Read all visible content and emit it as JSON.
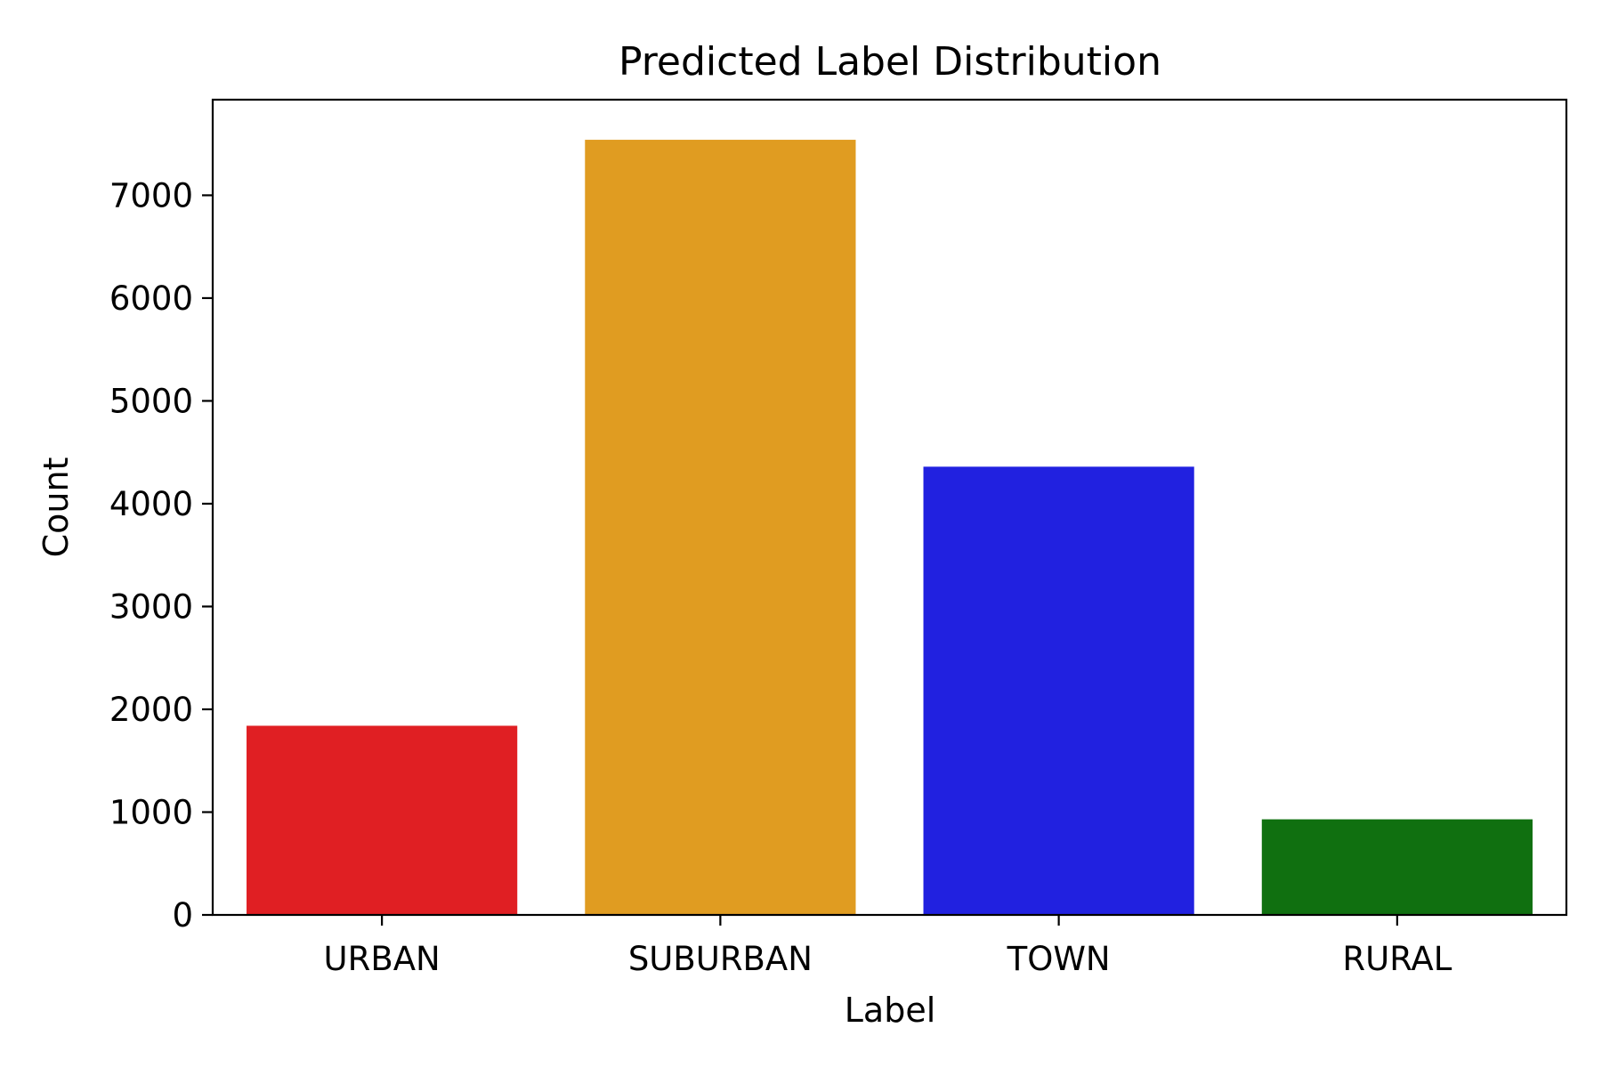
{
  "chart_data": {
    "type": "bar",
    "title": "Predicted Label Distribution",
    "xlabel": "Label",
    "ylabel": "Count",
    "categories": [
      "URBAN",
      "SUBURBAN",
      "TOWN",
      "RURAL"
    ],
    "values": [
      1840,
      7540,
      4360,
      930
    ],
    "colors": [
      "#e01f23",
      "#e09c21",
      "#2121e0",
      "#107010"
    ],
    "ylim": [
      0,
      7930
    ],
    "yticks": [
      0,
      1000,
      2000,
      3000,
      4000,
      5000,
      6000,
      7000
    ],
    "grid": false,
    "legend": "none"
  }
}
